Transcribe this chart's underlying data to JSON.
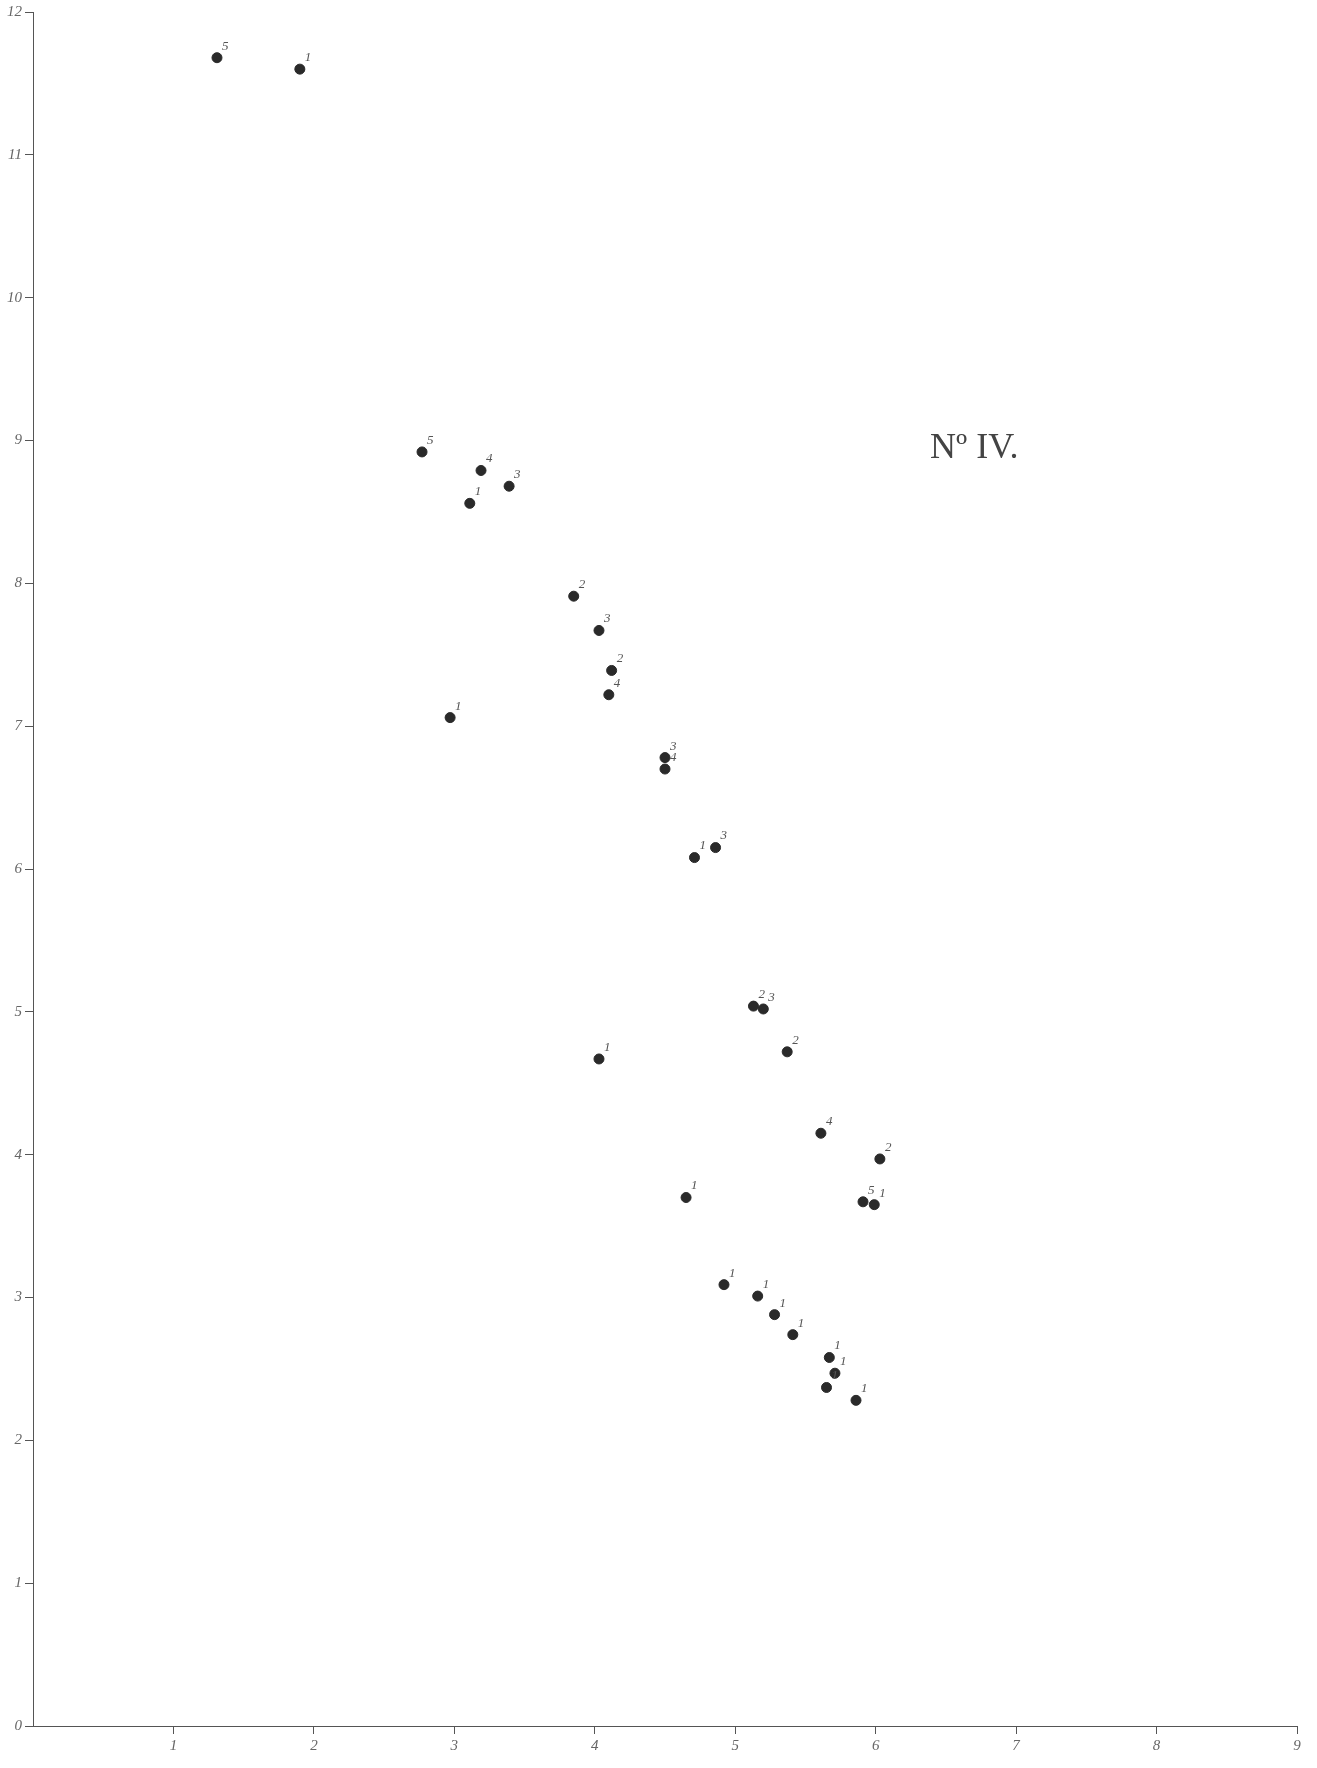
{
  "chart_data": {
    "type": "scatter",
    "title": "Nº IV.",
    "marker": "circle",
    "grid": false,
    "legend": false,
    "xlim": [
      0,
      9
    ],
    "ylim": [
      0,
      12
    ],
    "xticks": [
      1,
      2,
      3,
      4,
      5,
      6,
      7,
      8,
      9
    ],
    "yticks": [
      0,
      1,
      2,
      3,
      4,
      5,
      6,
      7,
      8,
      9,
      10,
      11,
      12
    ],
    "series": [
      {
        "color": "#2a2a2a",
        "x": [
          1.31,
          1.9,
          2.77,
          3.19,
          3.39,
          3.11,
          3.85,
          4.03,
          4.12,
          4.1,
          2.97,
          4.5,
          4.5,
          4.71,
          4.86,
          5.13,
          5.2,
          5.37,
          4.03,
          5.61,
          6.03,
          4.65,
          5.91,
          5.99,
          4.92,
          5.16,
          5.28,
          5.41,
          5.67,
          5.71,
          5.65,
          5.86
        ],
        "values": [
          11.68,
          11.6,
          8.92,
          8.79,
          8.68,
          8.56,
          7.91,
          7.67,
          7.39,
          7.22,
          7.06,
          6.78,
          6.7,
          6.08,
          6.15,
          5.04,
          5.02,
          4.72,
          4.67,
          4.15,
          3.97,
          3.7,
          3.67,
          3.65,
          3.09,
          3.01,
          2.88,
          2.74,
          2.58,
          2.47,
          2.37,
          2.28
        ]
      }
    ],
    "annotations": [
      {
        "text": "5",
        "x": 1.31,
        "y": 11.68
      },
      {
        "text": "1",
        "x": 1.9,
        "y": 11.6
      },
      {
        "text": "5",
        "x": 2.77,
        "y": 8.92
      },
      {
        "text": "4",
        "x": 3.19,
        "y": 8.79
      },
      {
        "text": "3",
        "x": 3.39,
        "y": 8.68
      },
      {
        "text": "1",
        "x": 3.11,
        "y": 8.56
      },
      {
        "text": "2",
        "x": 3.85,
        "y": 7.91
      },
      {
        "text": "3",
        "x": 4.03,
        "y": 7.67
      },
      {
        "text": "2",
        "x": 4.12,
        "y": 7.39
      },
      {
        "text": "4",
        "x": 4.1,
        "y": 7.22
      },
      {
        "text": "1",
        "x": 2.97,
        "y": 7.06
      },
      {
        "text": "3",
        "x": 4.5,
        "y": 6.78
      },
      {
        "text": "4",
        "x": 4.5,
        "y": 6.7
      },
      {
        "text": "1",
        "x": 4.71,
        "y": 6.08
      },
      {
        "text": "3",
        "x": 4.86,
        "y": 6.15
      },
      {
        "text": "2",
        "x": 5.13,
        "y": 5.04
      },
      {
        "text": "3",
        "x": 5.2,
        "y": 5.02
      },
      {
        "text": "2",
        "x": 5.37,
        "y": 4.72
      },
      {
        "text": "1",
        "x": 4.03,
        "y": 4.67
      },
      {
        "text": "4",
        "x": 5.61,
        "y": 4.15
      },
      {
        "text": "2",
        "x": 6.03,
        "y": 3.97
      },
      {
        "text": "1",
        "x": 4.65,
        "y": 3.7
      },
      {
        "text": "5",
        "x": 5.91,
        "y": 3.67
      },
      {
        "text": "1",
        "x": 5.99,
        "y": 3.65
      },
      {
        "text": "1",
        "x": 4.92,
        "y": 3.09
      },
      {
        "text": "1",
        "x": 5.16,
        "y": 3.01
      },
      {
        "text": "1",
        "x": 5.28,
        "y": 2.88
      },
      {
        "text": "1",
        "x": 5.41,
        "y": 2.74
      },
      {
        "text": "1",
        "x": 5.67,
        "y": 2.58
      },
      {
        "text": "1",
        "x": 5.71,
        "y": 2.47
      },
      {
        "text": "1",
        "x": 5.65,
        "y": 2.37
      },
      {
        "text": "1",
        "x": 5.86,
        "y": 2.28
      }
    ]
  }
}
